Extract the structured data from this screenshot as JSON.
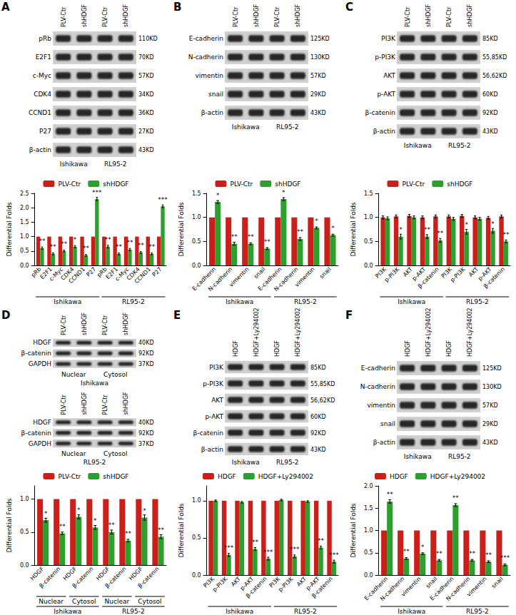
{
  "panel_labels": [
    "A",
    "B",
    "C",
    "D",
    "E",
    "F"
  ],
  "blots": [
    [
      {
        "lanes": [
          "PLV-Ctr",
          "shHDGF",
          "PLV-Ctr",
          "shHDGF"
        ],
        "rows": [
          {
            "label": "pRb",
            "size": "110KD"
          },
          {
            "label": "E2F1",
            "size": "70KD"
          },
          {
            "label": "c-Myc",
            "size": "57KD"
          },
          {
            "label": "CDK4",
            "size": "34KD"
          },
          {
            "label": "CCND1",
            "size": "36KD"
          },
          {
            "label": "P27",
            "size": "27KD"
          },
          {
            "label": "β-actin",
            "size": "43KD"
          }
        ],
        "footer": [
          [
            "Ishikawa",
            "RL95-2"
          ]
        ]
      }
    ],
    [
      {
        "lanes": [
          "PLV-Ctr",
          "shHDGF",
          "PLV-Ctr",
          "shHDGF"
        ],
        "rows": [
          {
            "label": "E-cadherin",
            "size": "125KD"
          },
          {
            "label": "N-cadherin",
            "size": "130KD"
          },
          {
            "label": "vimentin",
            "size": "57KD"
          },
          {
            "label": "snail",
            "size": "29KD"
          },
          {
            "label": "β-actin",
            "size": "43KD"
          }
        ],
        "footer": [
          [
            "Ishikawa",
            "RL95-2"
          ]
        ]
      }
    ],
    [
      {
        "lanes": [
          "PLV-Ctr",
          "shHDGF",
          "PLV-Ctr",
          "shHDGF"
        ],
        "rows": [
          {
            "label": "PI3K",
            "size": "85KD"
          },
          {
            "label": "p-PI3K",
            "size": "55,85KD"
          },
          {
            "label": "AKT",
            "size": "56,62KD"
          },
          {
            "label": "p-AKT",
            "size": "60KD"
          },
          {
            "label": "β-catenin",
            "size": "92KD"
          },
          {
            "label": "β-actin",
            "size": "43KD"
          }
        ],
        "footer": [
          [
            "Ishikawa",
            "RL95-2"
          ]
        ]
      }
    ],
    [
      {
        "lanes": [
          "PLV-Ctr",
          "shHDGF",
          "PLV-Ctr",
          "shHDGF"
        ],
        "rows": [
          {
            "label": "HDGF",
            "size": "40KD"
          },
          {
            "label": "β-catenin",
            "size": "92KD"
          },
          {
            "label": "GAPDH",
            "size": "37KD"
          }
        ],
        "footer": [
          [
            "Nuclear",
            "Cytosol"
          ],
          [
            "Ishikawa"
          ]
        ]
      },
      {
        "lanes": [
          "PLV-Ctr",
          "shHDGF",
          "PLV-Ctr",
          "shHDGF"
        ],
        "rows": [
          {
            "label": "HDGF",
            "size": "40KD"
          },
          {
            "label": "β-catenin",
            "size": "92KD"
          },
          {
            "label": "GAPDH",
            "size": "37KD"
          }
        ],
        "footer": [
          [
            "Nuclear",
            "Cytosol"
          ],
          [
            "RL95-2"
          ]
        ]
      }
    ],
    [
      {
        "lanes": [
          "HDGF",
          "HDGF+Ly294002",
          "HDGF",
          "HDGF+Ly294002"
        ],
        "rows": [
          {
            "label": "PI3K",
            "size": "85KD"
          },
          {
            "label": "p-PI3K",
            "size": "55,85KD"
          },
          {
            "label": "AKT",
            "size": "56,62KD"
          },
          {
            "label": "p-AKT",
            "size": "60KD"
          },
          {
            "label": "β-catenin",
            "size": "92KD"
          },
          {
            "label": "β-actin",
            "size": "43KD"
          }
        ],
        "footer": [
          [
            "Ishikawa",
            "RL95-2"
          ]
        ]
      }
    ],
    [
      {
        "lanes": [
          "HDGF",
          "HDGF+Ly294002",
          "HDGF",
          "HDGF+Ly294002"
        ],
        "rows": [
          {
            "label": "E-cadherin",
            "size": "125KD"
          },
          {
            "label": "N-cadherin",
            "size": "130KD"
          },
          {
            "label": "vimentin",
            "size": "57KD"
          },
          {
            "label": "snail",
            "size": "29KD"
          },
          {
            "label": "β-actin",
            "size": "43KD"
          }
        ],
        "footer": [
          [
            "Ishikawa",
            "RL95-2"
          ]
        ]
      }
    ]
  ],
  "chart_data": [
    {
      "type": "bar",
      "ylabel": "Differential Folds",
      "categories": [
        "pRb",
        "E2F1",
        "c-Myc",
        "CDK4",
        "CCND1",
        "P27",
        "pRb",
        "E2F1",
        "c-Myc",
        "CDK4",
        "CCND1",
        "P27"
      ],
      "category_groups": [
        [
          {
            "label": "Ishikawa",
            "span": 6
          },
          {
            "label": "RL95-2",
            "span": 6
          }
        ]
      ],
      "ylim": [
        0,
        2.5
      ],
      "yticks": [
        {
          "value": 0,
          "label": "0.0"
        },
        {
          "value": 0.5,
          "label": "0.5"
        },
        {
          "value": 1,
          "label": "1.0"
        },
        {
          "value": 1.5,
          "label": "1.5"
        },
        {
          "value": 2,
          "label": "2.0"
        },
        {
          "value": 2.5,
          "label": "2.5"
        }
      ],
      "legend": "top",
      "series": [
        {
          "name": "PLV-Ctr",
          "color": "#cc1f1a",
          "values": [
            1,
            1,
            1,
            1,
            1,
            1,
            1,
            1,
            1,
            1,
            1,
            1
          ]
        },
        {
          "name": "shHDGF",
          "color": "#2ca02c",
          "values": [
            0.6,
            0.4,
            0.5,
            0.65,
            0.35,
            2.3,
            0.65,
            0.4,
            0.55,
            0.45,
            0.4,
            2.05
          ],
          "errors": [
            0.04,
            0.03,
            0.03,
            0.04,
            0.03,
            0.06,
            0.05,
            0.03,
            0.04,
            0.03,
            0.03,
            0.05
          ],
          "annotations": [
            "**",
            "**",
            "**",
            "*",
            "**",
            "***",
            "**",
            "**",
            "**",
            "**",
            "**",
            "***"
          ]
        }
      ]
    },
    {
      "type": "bar",
      "ylabel": "Differential Folds",
      "categories": [
        "E-cadherin",
        "N-cadherin",
        "vimentin",
        "snail",
        "E-cadherin",
        "N-cadherin",
        "vimentin",
        "snail"
      ],
      "category_groups": [
        [
          {
            "label": "Ishikawa",
            "span": 4
          },
          {
            "label": "RL95-2",
            "span": 4
          }
        ]
      ],
      "ylim": [
        0,
        1.5
      ],
      "yticks": [
        {
          "value": 0,
          "label": "0.0"
        },
        {
          "value": 0.5,
          "label": "0.5"
        },
        {
          "value": 1,
          "label": "1.0"
        },
        {
          "value": 1.5,
          "label": "1.5"
        }
      ],
      "legend": "top",
      "series": [
        {
          "name": "PLV-Ctr",
          "color": "#cc1f1a",
          "values": [
            1,
            1,
            1,
            1,
            1,
            1,
            1,
            1
          ]
        },
        {
          "name": "shHDGF",
          "color": "#2ca02c",
          "values": [
            1.32,
            0.45,
            0.45,
            0.35,
            1.38,
            0.55,
            0.78,
            0.63
          ],
          "errors": [
            0.03,
            0.03,
            0.02,
            0.02,
            0.03,
            0.03,
            0.02,
            0.02
          ],
          "annotations": [
            "*",
            "**",
            "**",
            "**",
            "*",
            "**",
            "*",
            "*"
          ]
        }
      ]
    },
    {
      "type": "bar",
      "ylabel": "Differential Folds",
      "categories": [
        "PI3K",
        "p-PI3K",
        "AKT",
        "p-AKT",
        "β-catenin",
        "PI3K",
        "p-PI3K",
        "AKT",
        "p-AKT",
        "β-catenin"
      ],
      "category_groups": [
        [
          {
            "label": "Ishikawa",
            "span": 5
          },
          {
            "label": "RL95-2",
            "span": 5
          }
        ]
      ],
      "ylim": [
        0,
        1.5
      ],
      "yticks": [
        {
          "value": 0,
          "label": "0.0"
        },
        {
          "value": 0.5,
          "label": "0.5"
        },
        {
          "value": 1,
          "label": "1.0"
        },
        {
          "value": 1.5,
          "label": "1.5"
        }
      ],
      "legend": "top",
      "series": [
        {
          "name": "PLV-Ctr",
          "color": "#cc1f1a",
          "values": [
            1,
            1.02,
            1.03,
            1,
            1.02,
            1.02,
            1.03,
            1,
            0.99,
            1.02
          ],
          "errors": [
            0.03,
            0.03,
            0.03,
            0.03,
            0.03,
            0.03,
            0.03,
            0.03,
            0.03,
            0.03
          ]
        },
        {
          "name": "shHDGF",
          "color": "#2ca02c",
          "values": [
            0.98,
            0.6,
            1,
            0.6,
            0.52,
            0.97,
            0.7,
            0.97,
            0.72,
            0.5
          ],
          "errors": [
            0.03,
            0.05,
            0.03,
            0.04,
            0.04,
            0.03,
            0.05,
            0.03,
            0.05,
            0.03
          ],
          "annotations": [
            null,
            "*",
            null,
            "**",
            "**",
            null,
            "*",
            null,
            "*",
            "**"
          ]
        }
      ]
    },
    {
      "type": "bar",
      "ylabel": "Differential Folds",
      "categories": [
        "HDGF",
        "β-catenin",
        "HDGF",
        "β-catenin",
        "HDGF",
        "β-catenin",
        "HDGF",
        "β-catenin"
      ],
      "category_groups": [
        [
          {
            "label": "Nuclear",
            "span": 2
          },
          {
            "label": "Cytosol",
            "span": 2
          },
          {
            "label": "Nuclear",
            "span": 2
          },
          {
            "label": "Cytosol",
            "span": 2
          }
        ],
        [
          {
            "label": "Ishikawa",
            "span": 4
          },
          {
            "label": "RL95-2",
            "span": 4
          }
        ]
      ],
      "ylim": [
        0,
        1.2
      ],
      "yticks": [
        {
          "value": 0,
          "label": "0.0"
        },
        {
          "value": 0.5,
          "label": "0.5"
        },
        {
          "value": 1,
          "label": "1.0"
        }
      ],
      "legend": "top",
      "series": [
        {
          "name": "PLV-Ctr",
          "color": "#cc1f1a",
          "values": [
            1,
            1,
            1,
            1,
            1,
            1,
            1,
            1
          ]
        },
        {
          "name": "shHDGF",
          "color": "#2ca02c",
          "values": [
            0.68,
            0.48,
            0.73,
            0.57,
            0.5,
            0.37,
            0.72,
            0.43
          ],
          "errors": [
            0.03,
            0.02,
            0.03,
            0.03,
            0.03,
            0.02,
            0.04,
            0.03
          ],
          "annotations": [
            "*",
            "**",
            "*",
            "*",
            "**",
            "**",
            "*",
            "**"
          ]
        }
      ]
    },
    {
      "type": "bar",
      "ylabel": "Differential Folds",
      "categories": [
        "PI3K",
        "p-PI3K",
        "AKT",
        "p-AKT",
        "β-catenin",
        "PI3K",
        "p-PI3K",
        "AKT",
        "p-AKT",
        "β-catenin"
      ],
      "category_groups": [
        [
          {
            "label": "Ishikawa",
            "span": 5
          },
          {
            "label": "RL95-2",
            "span": 5
          }
        ]
      ],
      "ylim": [
        0,
        1.2
      ],
      "yticks": [
        {
          "value": 0,
          "label": "0.0"
        },
        {
          "value": 0.5,
          "label": "0.5"
        },
        {
          "value": 1,
          "label": "1.0"
        }
      ],
      "legend": "top",
      "series": [
        {
          "name": "HDGF",
          "color": "#cc1f1a",
          "values": [
            1,
            1,
            1,
            1,
            1,
            1,
            1,
            1,
            1,
            1
          ]
        },
        {
          "name": "HDGF+Ly294002",
          "color": "#2ca02c",
          "values": [
            1,
            0.27,
            0.98,
            0.35,
            0.22,
            1.01,
            0.25,
            0.99,
            0.37,
            0.18
          ],
          "errors": [
            0.01,
            0.02,
            0.01,
            0.02,
            0.02,
            0.01,
            0.02,
            0.01,
            0.02,
            0.02
          ],
          "annotations": [
            null,
            "***",
            null,
            "**",
            "***",
            null,
            "***",
            null,
            "**",
            "***"
          ]
        }
      ]
    },
    {
      "type": "bar",
      "ylabel": "Differential Folds",
      "categories": [
        "E-cadherin",
        "N-cadherin",
        "vimentin",
        "snail",
        "E-cadherin",
        "N-cadherin",
        "vimentin",
        "snail"
      ],
      "category_groups": [
        [
          {
            "label": "Ishikawa",
            "span": 4
          },
          {
            "label": "RL95-2",
            "span": 4
          }
        ]
      ],
      "ylim": [
        0,
        2
      ],
      "yticks": [
        {
          "value": 0,
          "label": "0.0"
        },
        {
          "value": 0.5,
          "label": "0.5"
        },
        {
          "value": 1,
          "label": "1.0"
        },
        {
          "value": 1.5,
          "label": "1.5"
        },
        {
          "value": 2,
          "label": "2.0"
        }
      ],
      "legend": "top",
      "series": [
        {
          "name": "HDGF",
          "color": "#cc1f1a",
          "values": [
            1,
            1,
            1,
            1,
            1,
            1,
            1,
            1
          ]
        },
        {
          "name": "HDGF+Ly294002",
          "color": "#2ca02c",
          "values": [
            1.65,
            0.37,
            0.48,
            0.33,
            1.57,
            0.33,
            0.3,
            0.23
          ],
          "errors": [
            0.04,
            0.02,
            0.02,
            0.02,
            0.03,
            0.02,
            0.02,
            0.02
          ],
          "annotations": [
            "**",
            "**",
            "*",
            "**",
            "**",
            "**",
            "**",
            "***"
          ]
        }
      ]
    }
  ]
}
